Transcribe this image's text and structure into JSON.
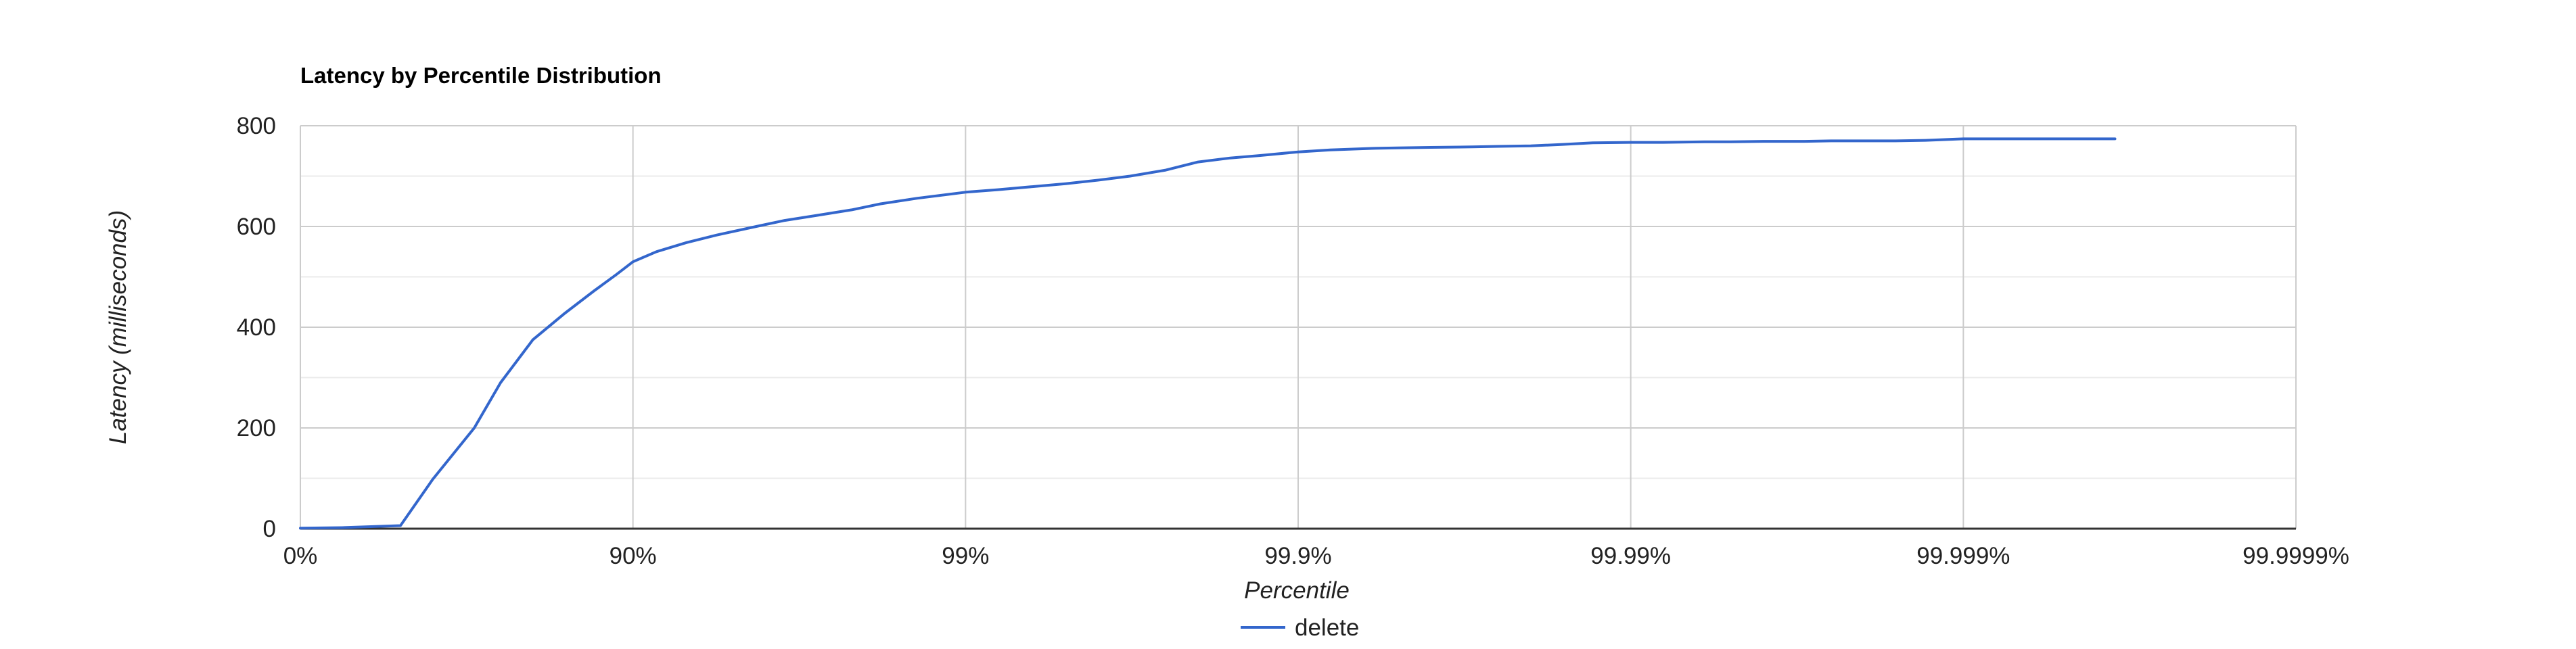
{
  "chart_data": {
    "type": "line",
    "title": "Latency by Percentile Distribution",
    "xlabel": "Percentile",
    "ylabel": "Latency (milliseconds)",
    "x_scale": "log-inverse",
    "x_tick_labels": [
      "0%",
      "90%",
      "99%",
      "99.9%",
      "99.99%",
      "99.999%",
      "99.9999%"
    ],
    "xlim": [
      "0%",
      "99.9999%"
    ],
    "ylim": [
      0,
      800
    ],
    "y_ticks": [
      0,
      200,
      400,
      600,
      800
    ],
    "y_tick_labels": [
      "0",
      "200",
      "400",
      "600",
      "800"
    ],
    "grid": true,
    "legend_position": "bottom",
    "series": [
      {
        "name": "delete",
        "color": "#3366cc",
        "x": [
          0,
          25,
          50,
          60,
          70,
          75,
          80,
          84,
          86.9,
          88.8,
          90,
          91.5,
          93.1,
          94.4,
          95.6,
          96.5,
          97.2,
          97.8,
          98.2,
          98.6,
          99,
          99.2,
          99.37,
          99.5,
          99.6,
          99.68,
          99.75,
          99.8,
          99.84,
          99.87,
          99.9,
          99.92,
          99.94,
          99.95,
          99.96,
          99.97,
          99.975,
          99.98,
          99.984,
          99.987,
          99.99,
          99.992,
          99.994,
          99.995,
          99.996,
          99.997,
          99.9975,
          99.998,
          99.9984,
          99.9987,
          99.999,
          99.9992,
          99.9994,
          99.9995,
          99.9996,
          99.99965
        ],
        "y": [
          1,
          2,
          6,
          98,
          200,
          290,
          375,
          428,
          472,
          505,
          530,
          550,
          568,
          583,
          598,
          612,
          622,
          633,
          645,
          656,
          668,
          673,
          679,
          685,
          692,
          700,
          712,
          728,
          736,
          741,
          748,
          752,
          755,
          756,
          757,
          758,
          759,
          760,
          763,
          766,
          767,
          767,
          768,
          768,
          769,
          769,
          770,
          770,
          770,
          771,
          774,
          774,
          774,
          774,
          774,
          774
        ]
      }
    ]
  }
}
